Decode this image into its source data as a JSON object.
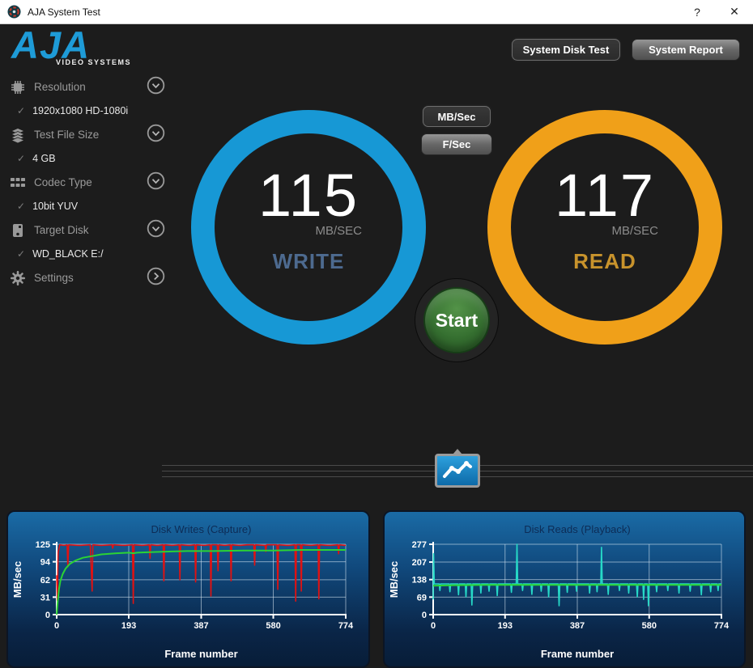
{
  "window": {
    "title": "AJA System Test",
    "help_label": "?",
    "close_label": "✕"
  },
  "logo": {
    "text": "AJA",
    "subtext": "VIDEO SYSTEMS"
  },
  "header_buttons": [
    {
      "label": "System Disk Test",
      "style": "dark"
    },
    {
      "label": "System Report",
      "style": "light"
    }
  ],
  "sidebar": {
    "items": [
      {
        "icon": "chip-icon",
        "label": "Resolution",
        "value": "1920x1080 HD-1080i",
        "chevron": "down"
      },
      {
        "icon": "layers-icon",
        "label": "Test File Size",
        "value": "4 GB",
        "chevron": "down"
      },
      {
        "icon": "grid-icon",
        "label": "Codec Type",
        "value": "10bit YUV",
        "chevron": "down"
      },
      {
        "icon": "disk-icon",
        "label": "Target Disk",
        "value": "WD_BLACK E:/",
        "chevron": "down"
      },
      {
        "icon": "gear-icon",
        "label": "Settings",
        "value": "",
        "chevron": "right"
      }
    ],
    "check_glyph": "✓"
  },
  "unit_buttons": [
    {
      "label": "MB/Sec",
      "selected": true
    },
    {
      "label": "F/Sec",
      "selected": false
    }
  ],
  "gauges": {
    "write": {
      "value": "115",
      "unit": "MB/SEC",
      "label": "WRITE",
      "ring_color": "#1798d5",
      "label_color": "#4d6a8f"
    },
    "read": {
      "value": "117",
      "unit": "MB/SEC",
      "label": "READ",
      "ring_color": "#f0a019",
      "label_color": "#c8932c"
    }
  },
  "start_button": {
    "label": "Start",
    "color": "#3e7c3c"
  },
  "chart_data": [
    {
      "type": "line",
      "title": "Disk Writes (Capture)",
      "xlabel": "Frame number",
      "ylabel": "MB/sec",
      "xlim": [
        0,
        774
      ],
      "ylim": [
        0,
        125
      ],
      "xticks": [
        0,
        193,
        387,
        580,
        774
      ],
      "yticks": [
        0,
        31,
        62,
        94,
        125
      ],
      "grid": true,
      "legend": "none",
      "series": [
        {
          "name": "instantaneous-write-rate",
          "color": "#e01212",
          "width": 1.6,
          "points": [
            [
              0,
              70
            ],
            [
              2,
              25
            ],
            [
              4,
              110
            ],
            [
              8,
              124
            ],
            [
              20,
              123
            ],
            [
              28,
              124
            ],
            [
              30,
              85
            ],
            [
              32,
              124
            ],
            [
              60,
              123
            ],
            [
              90,
              124
            ],
            [
              95,
              42
            ],
            [
              97,
              124
            ],
            [
              120,
              123
            ],
            [
              148,
              124
            ],
            [
              150,
              118
            ],
            [
              152,
              124
            ],
            [
              180,
              123
            ],
            [
              203,
              124
            ],
            [
              205,
              20
            ],
            [
              207,
              124
            ],
            [
              230,
              123
            ],
            [
              248,
              124
            ],
            [
              250,
              100
            ],
            [
              252,
              124
            ],
            [
              270,
              123
            ],
            [
              285,
              124
            ],
            [
              287,
              60
            ],
            [
              289,
              124
            ],
            [
              310,
              123
            ],
            [
              328,
              124
            ],
            [
              330,
              62
            ],
            [
              332,
              124
            ],
            [
              355,
              123
            ],
            [
              370,
              124
            ],
            [
              372,
              58
            ],
            [
              374,
              124
            ],
            [
              395,
              123
            ],
            [
              411,
              124
            ],
            [
              413,
              33
            ],
            [
              415,
              124
            ],
            [
              430,
              124
            ],
            [
              432,
              78
            ],
            [
              434,
              124
            ],
            [
              450,
              123
            ],
            [
              465,
              124
            ],
            [
              467,
              60
            ],
            [
              469,
              124
            ],
            [
              490,
              123
            ],
            [
              510,
              124
            ],
            [
              528,
              124
            ],
            [
              530,
              88
            ],
            [
              532,
              124
            ],
            [
              558,
              123
            ],
            [
              560,
              112
            ],
            [
              562,
              124
            ],
            [
              590,
              124
            ],
            [
              592,
              45
            ],
            [
              594,
              124
            ],
            [
              620,
              123
            ],
            [
              638,
              124
            ],
            [
              640,
              24
            ],
            [
              642,
              124
            ],
            [
              653,
              124
            ],
            [
              655,
              42
            ],
            [
              657,
              124
            ],
            [
              680,
              123
            ],
            [
              700,
              124
            ],
            [
              702,
              28
            ],
            [
              704,
              124
            ],
            [
              730,
              123
            ],
            [
              753,
              124
            ],
            [
              755,
              108
            ],
            [
              757,
              124
            ],
            [
              774,
              123
            ]
          ]
        },
        {
          "name": "average-write-rate",
          "color": "#2bd334",
          "width": 2,
          "points": [
            [
              0,
              0
            ],
            [
              3,
              25
            ],
            [
              6,
              45
            ],
            [
              10,
              60
            ],
            [
              16,
              72
            ],
            [
              24,
              82
            ],
            [
              35,
              90
            ],
            [
              50,
              96
            ],
            [
              70,
              101
            ],
            [
              95,
              104
            ],
            [
              120,
              107
            ],
            [
              160,
              109
            ],
            [
              193,
              110
            ],
            [
              205,
              109
            ],
            [
              215,
              110
            ],
            [
              250,
              111
            ],
            [
              300,
              112
            ],
            [
              350,
              113
            ],
            [
              420,
              113
            ],
            [
              500,
              114
            ],
            [
              580,
              114
            ],
            [
              660,
              115
            ],
            [
              774,
              115
            ]
          ]
        }
      ]
    },
    {
      "type": "line",
      "title": "Disk Reads (Playback)",
      "xlabel": "Frame number",
      "ylabel": "MB/sec",
      "xlim": [
        0,
        774
      ],
      "ylim": [
        0,
        277
      ],
      "xticks": [
        0,
        193,
        387,
        580,
        774
      ],
      "yticks": [
        0,
        69,
        138,
        207,
        277
      ],
      "grid": true,
      "legend": "none",
      "series": [
        {
          "name": "instantaneous-read-rate",
          "color": "#26d9c7",
          "width": 1.6,
          "points": [
            [
              0,
              60
            ],
            [
              1,
              240
            ],
            [
              3,
              121
            ],
            [
              16,
              121
            ],
            [
              18,
              95
            ],
            [
              20,
              121
            ],
            [
              43,
              121
            ],
            [
              45,
              90
            ],
            [
              47,
              121
            ],
            [
              66,
              121
            ],
            [
              68,
              78
            ],
            [
              70,
              121
            ],
            [
              86,
              121
            ],
            [
              88,
              70
            ],
            [
              90,
              121
            ],
            [
              102,
              121
            ],
            [
              104,
              38
            ],
            [
              106,
              121
            ],
            [
              126,
              121
            ],
            [
              128,
              85
            ],
            [
              130,
              121
            ],
            [
              148,
              121
            ],
            [
              150,
              92
            ],
            [
              152,
              121
            ],
            [
              170,
              121
            ],
            [
              172,
              75
            ],
            [
              174,
              121
            ],
            [
              208,
              121
            ],
            [
              210,
              88
            ],
            [
              212,
              121
            ],
            [
              223,
              121
            ],
            [
              225,
              277
            ],
            [
              227,
              121
            ],
            [
              238,
              121
            ],
            [
              240,
              95
            ],
            [
              242,
              121
            ],
            [
              263,
              121
            ],
            [
              265,
              80
            ],
            [
              267,
              121
            ],
            [
              288,
              121
            ],
            [
              290,
              92
            ],
            [
              292,
              121
            ],
            [
              308,
              121
            ],
            [
              310,
              70
            ],
            [
              312,
              121
            ],
            [
              336,
              121
            ],
            [
              338,
              35
            ],
            [
              340,
              121
            ],
            [
              358,
              121
            ],
            [
              360,
              88
            ],
            [
              362,
              121
            ],
            [
              383,
              121
            ],
            [
              385,
              92
            ],
            [
              387,
              121
            ],
            [
              418,
              121
            ],
            [
              420,
              85
            ],
            [
              422,
              121
            ],
            [
              438,
              121
            ],
            [
              440,
              90
            ],
            [
              442,
              121
            ],
            [
              450,
              121
            ],
            [
              452,
              265
            ],
            [
              454,
              121
            ],
            [
              468,
              121
            ],
            [
              470,
              80
            ],
            [
              472,
              121
            ],
            [
              498,
              121
            ],
            [
              500,
              95
            ],
            [
              502,
              121
            ],
            [
              523,
              121
            ],
            [
              525,
              85
            ],
            [
              527,
              121
            ],
            [
              546,
              121
            ],
            [
              548,
              70
            ],
            [
              550,
              121
            ],
            [
              563,
              121
            ],
            [
              565,
              60
            ],
            [
              567,
              121
            ],
            [
              576,
              121
            ],
            [
              578,
              35
            ],
            [
              580,
              121
            ],
            [
              598,
              121
            ],
            [
              600,
              90
            ],
            [
              602,
              121
            ],
            [
              628,
              121
            ],
            [
              630,
              95
            ],
            [
              632,
              121
            ],
            [
              658,
              121
            ],
            [
              660,
              85
            ],
            [
              662,
              121
            ],
            [
              688,
              121
            ],
            [
              690,
              92
            ],
            [
              692,
              121
            ],
            [
              718,
              121
            ],
            [
              720,
              78
            ],
            [
              722,
              121
            ],
            [
              743,
              121
            ],
            [
              745,
              90
            ],
            [
              747,
              121
            ],
            [
              763,
              121
            ],
            [
              765,
              95
            ],
            [
              767,
              121
            ],
            [
              774,
              121
            ]
          ]
        },
        {
          "name": "average-read-rate",
          "color": "#2bd334",
          "width": 2,
          "points": [
            [
              0,
              114
            ],
            [
              60,
              116
            ],
            [
              150,
              117
            ],
            [
              774,
              117
            ]
          ]
        }
      ]
    }
  ]
}
